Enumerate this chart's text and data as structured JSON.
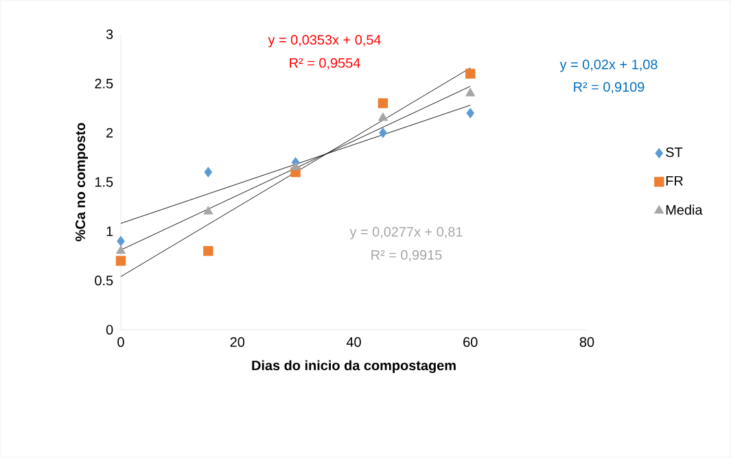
{
  "chart_data": {
    "type": "scatter",
    "xlabel": "Dias do inicio da compostagem",
    "ylabel": "%Ca no composto",
    "xlim": [
      0,
      80
    ],
    "xticks": [
      0,
      20,
      40,
      60,
      80
    ],
    "ylim": [
      0,
      3
    ],
    "yticks": [
      0,
      0.5,
      1,
      1.5,
      2,
      2.5,
      3
    ],
    "grid": false,
    "legend": "right",
    "series": [
      {
        "name": "ST",
        "color": "#5b9bd5",
        "marker": "diamond",
        "x": [
          0,
          15,
          30,
          45,
          60
        ],
        "values": [
          0.9,
          1.6,
          1.7,
          2.0,
          2.2
        ]
      },
      {
        "name": "FR",
        "color": "#ed7d31",
        "marker": "square",
        "x": [
          0,
          15,
          30,
          45,
          60
        ],
        "values": [
          0.7,
          0.8,
          1.6,
          2.3,
          2.6
        ]
      },
      {
        "name": "Media",
        "color": "#a5a5a5",
        "marker": "triangle",
        "x": [
          0,
          15,
          30,
          45,
          60
        ],
        "values": [
          0.8,
          1.2,
          1.65,
          2.15,
          2.4
        ]
      },
      {
        "type": "line",
        "color": "#000000",
        "marker": "none",
        "x": [
          0,
          60
        ],
        "values": [
          1.08,
          2.28
        ]
      },
      {
        "type": "line",
        "color": "#000000",
        "marker": "none",
        "x": [
          0,
          60
        ],
        "values": [
          0.54,
          2.658
        ]
      },
      {
        "type": "line",
        "color": "#000000",
        "marker": "none",
        "x": [
          0,
          60
        ],
        "values": [
          0.81,
          2.472
        ]
      }
    ],
    "annotations": [
      "y = 0,0353x + 0,54",
      "R² = 0,9554",
      "y = 0,02x + 1,08",
      "R² = 0,9109",
      "y = 0,0277x + 0,81",
      "R² = 0,9915"
    ]
  }
}
